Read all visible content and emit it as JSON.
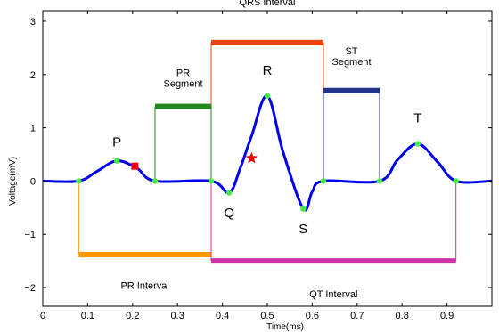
{
  "chart_data": {
    "type": "line",
    "title": "",
    "xlabel": "Time(ms)",
    "ylabel": "Voltage(mV)",
    "xlim": [
      0,
      1.0
    ],
    "ylim": [
      -2.35,
      3.2
    ],
    "xticks": [
      0,
      0.1,
      0.2,
      0.3,
      0.4,
      0.5,
      0.6,
      0.7,
      0.8,
      0.9
    ],
    "xtick_labels": [
      "0",
      "0.1",
      "0.2",
      "0.3",
      "0.4",
      "0.5",
      "0.6",
      "0.7",
      "0.8",
      "0.9"
    ],
    "yticks": [
      -2,
      -1,
      0,
      1,
      2,
      3
    ],
    "ytick_labels": [
      "−2",
      "−1",
      "0",
      "1",
      "2",
      "3"
    ],
    "grid": false,
    "series": [
      {
        "color": "#0000ee",
        "x": [
          0,
          0.08,
          0.12,
          0.165,
          0.21,
          0.25,
          0.375,
          0.415,
          0.44,
          0.465,
          0.5,
          0.535,
          0.58,
          0.6,
          0.625,
          0.75,
          0.79,
          0.835,
          0.88,
          0.92,
          1.0
        ],
        "y": [
          0,
          0,
          0.18,
          0.38,
          0.24,
          0,
          0,
          -0.22,
          0.25,
          0.85,
          1.6,
          0.55,
          -0.52,
          -0.2,
          0,
          0,
          0.4,
          0.7,
          0.35,
          0,
          0
        ]
      }
    ],
    "fiducial_points": [
      {
        "x": 0.08,
        "y": 0
      },
      {
        "x": 0.165,
        "y": 0.38
      },
      {
        "x": 0.25,
        "y": 0
      },
      {
        "x": 0.375,
        "y": 0
      },
      {
        "x": 0.415,
        "y": -0.22
      },
      {
        "x": 0.5,
        "y": 1.6
      },
      {
        "x": 0.58,
        "y": -0.52
      },
      {
        "x": 0.625,
        "y": 0
      },
      {
        "x": 0.75,
        "y": 0
      },
      {
        "x": 0.835,
        "y": 0.7
      },
      {
        "x": 0.92,
        "y": 0
      }
    ],
    "special_markers": [
      {
        "type": "square",
        "x": 0.205,
        "y": 0.28,
        "color": "#ee0000"
      },
      {
        "type": "star",
        "x": 0.465,
        "y": 0.43,
        "color": "#ee0000"
      }
    ],
    "wave_labels": [
      {
        "text": "P",
        "x": 0.165,
        "y": 0.65
      },
      {
        "text": "Q",
        "x": 0.415,
        "y": -0.68
      },
      {
        "text": "R",
        "x": 0.5,
        "y": 2.0
      },
      {
        "text": "S",
        "x": 0.58,
        "y": -0.98
      },
      {
        "text": "T",
        "x": 0.835,
        "y": 1.1
      }
    ],
    "intervals": [
      {
        "label": "QRS Interval",
        "x0": 0.375,
        "x1": 0.625,
        "y": 2.6,
        "color": "#ee4411",
        "label_y": 3.3
      },
      {
        "label": "PR\nSegment",
        "x0": 0.25,
        "x1": 0.375,
        "y": 1.4,
        "color": "#228822",
        "label_y": 1.97
      },
      {
        "label": "ST\nSegment",
        "x0": 0.625,
        "x1": 0.75,
        "y": 1.7,
        "color": "#223388",
        "label_y": 2.38
      },
      {
        "label": "PR Interval",
        "x0": 0.08,
        "x1": 0.375,
        "y": -1.38,
        "color": "#ff9900",
        "label_y": -2.02
      },
      {
        "label": "QT Interval",
        "x0": 0.375,
        "x1": 0.92,
        "y": -1.5,
        "color": "#cc33aa",
        "label_y": -2.18
      }
    ]
  }
}
